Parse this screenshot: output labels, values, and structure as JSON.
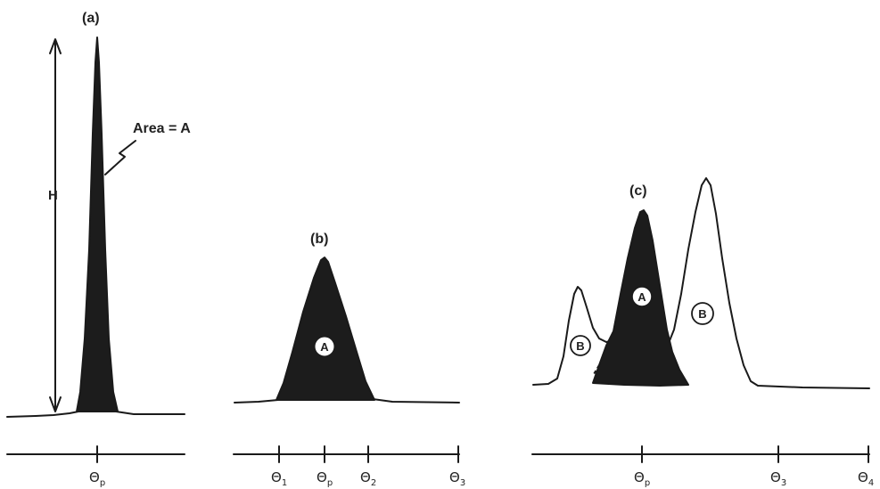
{
  "panels": {
    "a": {
      "label": "(a)",
      "area_label": "Area = A",
      "height_label": "H",
      "axis_ticks": [
        {
          "main": "Θ",
          "sub": "p"
        }
      ]
    },
    "b": {
      "label": "(b)",
      "peak_label": "A",
      "axis_ticks": [
        {
          "main": "Θ",
          "sub": "1"
        },
        {
          "main": "Θ",
          "sub": "p"
        },
        {
          "main": "Θ",
          "sub": "2"
        },
        {
          "main": "Θ",
          "sub": "3"
        }
      ]
    },
    "c": {
      "label": "(c)",
      "peak_label": "A",
      "left_interference_label": "B",
      "right_interference_label": "B",
      "axis_ticks": [
        {
          "main": "Θ",
          "sub": "p"
        },
        {
          "main": "Θ",
          "sub": "3"
        },
        {
          "main": "Θ",
          "sub": "4"
        }
      ]
    }
  },
  "colors": {
    "ink": "#1a1a1a",
    "background": "#ffffff"
  }
}
